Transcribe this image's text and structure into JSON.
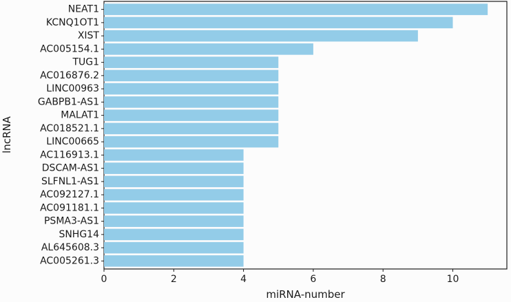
{
  "chart_data": {
    "type": "bar",
    "orientation": "horizontal",
    "title": "",
    "xlabel": "miRNA-number",
    "ylabel": "lncRNA",
    "categories": [
      "NEAT1",
      "KCNQ1OT1",
      "XIST",
      "AC005154.1",
      "TUG1",
      "AC016876.2",
      "LINC00963",
      "GABPB1-AS1",
      "MALAT1",
      "AC018521.1",
      "LINC00665",
      "AC116913.1",
      "DSCAM-AS1",
      "SLFNL1-AS1",
      "AC092127.1",
      "AC091181.1",
      "PSMA3-AS1",
      "SNHG14",
      "AL645608.3",
      "AC005261.3"
    ],
    "values": [
      11,
      10,
      9,
      6,
      5,
      5,
      5,
      5,
      5,
      5,
      5,
      4,
      4,
      4,
      4,
      4,
      4,
      4,
      4,
      4
    ],
    "xlim": [
      0,
      11.55
    ],
    "xticks": [
      0,
      2,
      4,
      6,
      8,
      10
    ],
    "bar_color": "#93cce8",
    "grid": false,
    "legend": "none"
  }
}
